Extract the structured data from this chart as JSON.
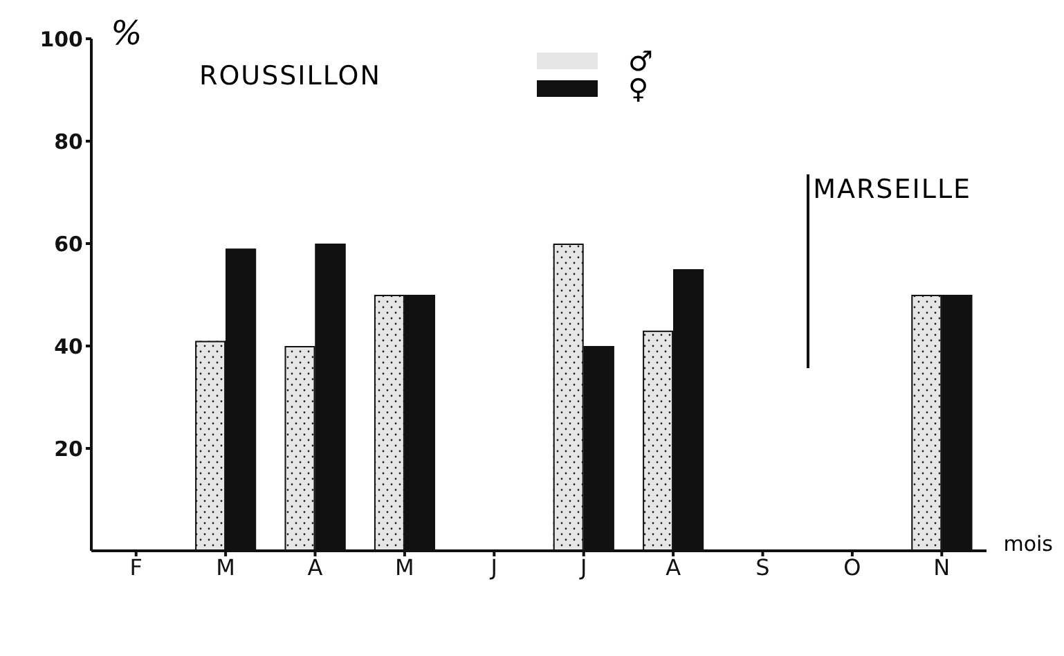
{
  "chart_data": {
    "type": "bar",
    "ylabel": "%",
    "xlabel": "mois",
    "categories": [
      "F",
      "M",
      "A",
      "M",
      "J",
      "J",
      "A",
      "S",
      "O",
      "N"
    ],
    "series": [
      {
        "name": "♂",
        "color": "#e6e6e6",
        "values": [
          null,
          41,
          40,
          50,
          null,
          60,
          43,
          null,
          null,
          50
        ]
      },
      {
        "name": "♀",
        "color": "#111111",
        "values": [
          null,
          59,
          60,
          50,
          null,
          40,
          55,
          null,
          null,
          50
        ]
      }
    ],
    "ylim": [
      0,
      100
    ],
    "yticks": [
      20,
      40,
      60,
      80,
      100
    ],
    "grid": false,
    "legend": "top",
    "annotations": [
      "ROUSSILLON",
      "MARSEILLE"
    ]
  }
}
